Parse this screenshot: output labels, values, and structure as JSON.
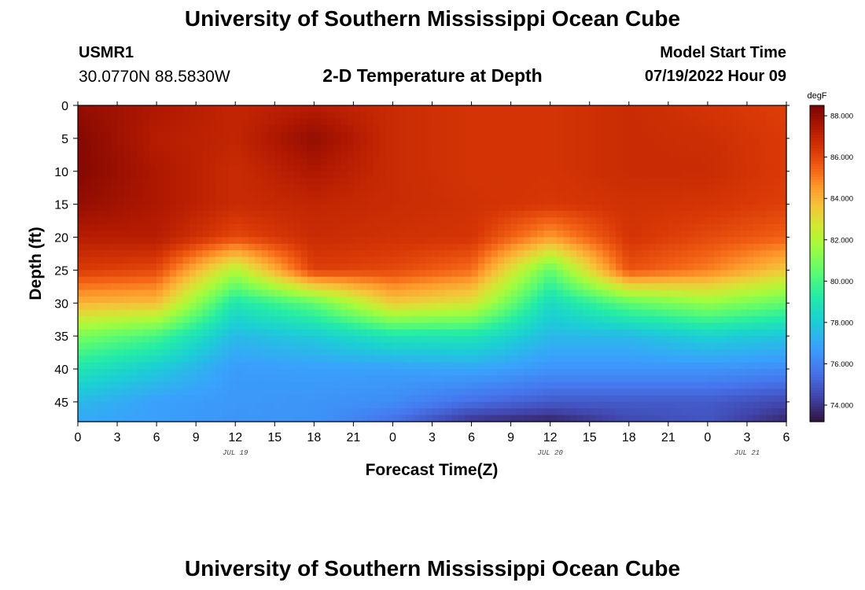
{
  "header": {
    "title": "University of Southern Mississippi Ocean Cube",
    "station_id": "USMR1",
    "coords": "30.0770N  88.5830W",
    "plot_title": "2-D Temperature at Depth",
    "model_label": "Model Start Time",
    "model_time": "07/19/2022 Hour 09"
  },
  "footer": {
    "title": "University of Southern Mississippi Ocean Cube"
  },
  "chart_data": {
    "type": "heatmap",
    "title": "2-D Temperature at Depth",
    "xlabel": "Forecast Time(Z)",
    "ylabel": "Depth (ft)",
    "x_range": [
      0,
      54
    ],
    "y_range": [
      0,
      48
    ],
    "x_tick_labels": [
      "0",
      "3",
      "6",
      "9",
      "12",
      "15",
      "18",
      "21",
      "0",
      "3",
      "6",
      "9",
      "12",
      "15",
      "18",
      "21",
      "0",
      "3",
      "6"
    ],
    "x_tick_hours": [
      0,
      3,
      6,
      9,
      12,
      15,
      18,
      21,
      24,
      27,
      30,
      33,
      36,
      39,
      42,
      45,
      48,
      51,
      54
    ],
    "date_labels": [
      {
        "label": "JUL 19",
        "hour": 12
      },
      {
        "label": "JUL 20",
        "hour": 36
      },
      {
        "label": "JUL 21",
        "hour": 51
      }
    ],
    "y_ticks": [
      0,
      5,
      10,
      15,
      20,
      25,
      30,
      35,
      40,
      45
    ],
    "colorbar": {
      "unit": "degF",
      "min": 73.2,
      "max": 88.5,
      "tick_values": [
        74,
        76,
        78,
        80,
        82,
        84,
        86,
        88
      ],
      "tick_labels": [
        "74.000",
        "76.000",
        "78.000",
        "80.000",
        "82.000",
        "84.000",
        "86.000",
        "88.000"
      ]
    },
    "depths_ft": [
      0,
      5,
      10,
      15,
      20,
      25,
      30,
      35,
      40,
      45,
      48
    ],
    "hours": [
      0,
      6,
      12,
      18,
      24,
      30,
      36,
      42,
      48,
      54
    ],
    "temperature_degF": [
      [
        88.0,
        87.5,
        87.0,
        87.3,
        86.8,
        86.5,
        86.5,
        86.8,
        86.5,
        86.2
      ],
      [
        88.3,
        87.3,
        87.0,
        88.0,
        86.8,
        86.5,
        86.5,
        86.8,
        86.7,
        86.3
      ],
      [
        88.3,
        87.5,
        86.8,
        87.5,
        86.8,
        86.5,
        86.5,
        86.8,
        86.8,
        86.3
      ],
      [
        88.0,
        87.5,
        86.8,
        87.0,
        86.8,
        86.6,
        86.4,
        86.6,
        86.5,
        86.2
      ],
      [
        87.3,
        87.3,
        86.0,
        86.8,
        86.6,
        86.5,
        84.5,
        86.5,
        86.0,
        85.5
      ],
      [
        86.3,
        86.0,
        82.0,
        86.2,
        86.0,
        85.3,
        80.5,
        85.8,
        85.0,
        83.5
      ],
      [
        84.0,
        83.8,
        79.0,
        80.5,
        83.5,
        82.8,
        78.5,
        80.5,
        81.5,
        80.5
      ],
      [
        81.0,
        80.0,
        77.5,
        78.0,
        79.0,
        79.0,
        77.5,
        77.5,
        78.2,
        77.8
      ],
      [
        79.0,
        78.0,
        76.7,
        76.8,
        76.8,
        77.0,
        76.5,
        76.5,
        76.5,
        76.3
      ],
      [
        77.5,
        76.8,
        76.6,
        76.5,
        76.3,
        75.5,
        75.0,
        75.0,
        75.0,
        74.5
      ],
      [
        77.0,
        76.8,
        76.5,
        76.5,
        75.5,
        74.0,
        73.6,
        74.5,
        74.8,
        73.7
      ]
    ]
  }
}
